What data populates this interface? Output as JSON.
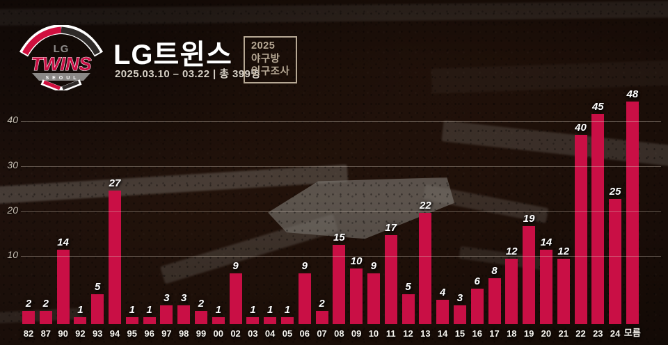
{
  "header": {
    "title": "LG트윈스",
    "subtitle": "2025.03.10 – 03.22  |  총 399명",
    "badge_lines": [
      "2025",
      "야구방",
      "인구조사"
    ],
    "logo": {
      "top_text": "LG",
      "team_text": "TWINS",
      "bottom_text": "SEOUL"
    }
  },
  "colors": {
    "bar": "#c90f45",
    "logo_red": "#d0103f",
    "logo_black": "#2e2a28",
    "badge_tan": "#b6a894",
    "chalk": "#bab5ab"
  },
  "chart_data": {
    "type": "bar",
    "title": "LG트윈스",
    "subtitle": "2025.03.10 – 03.22 | 총 399명",
    "categories": [
      "82",
      "87",
      "90",
      "92",
      "93",
      "94",
      "95",
      "96",
      "97",
      "98",
      "99",
      "00",
      "02",
      "03",
      "04",
      "05",
      "06",
      "07",
      "08",
      "09",
      "10",
      "11",
      "12",
      "13",
      "14",
      "15",
      "16",
      "17",
      "18",
      "19",
      "20",
      "21",
      "22",
      "23",
      "24",
      "모름"
    ],
    "values": [
      2,
      2,
      14,
      1,
      5,
      27,
      1,
      1,
      3,
      3,
      2,
      1,
      9,
      1,
      1,
      1,
      9,
      2,
      15,
      10,
      9,
      17,
      5,
      22,
      4,
      3,
      6,
      8,
      12,
      19,
      14,
      12,
      40,
      45,
      25,
      48
    ],
    "total": 399,
    "xlabel": "",
    "ylabel": "",
    "ylim": [
      0,
      48
    ],
    "yticks": [
      10,
      20,
      30,
      40
    ],
    "grid": true,
    "legend": false,
    "value_labels": true
  }
}
